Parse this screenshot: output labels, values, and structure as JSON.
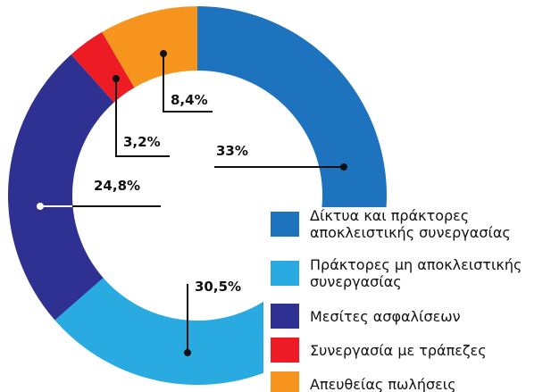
{
  "chart_data": {
    "type": "donut",
    "categories": [
      "Δίκτυα και πράκτορες αποκλειστικής συνεργασίας",
      "Πράκτορες μη αποκλειστικής συνεργασίας",
      "Μεσίτες ασφαλίσεων",
      "Συνεργασία με τράπεζες",
      "Απευθείας πωλήσεις"
    ],
    "values": [
      33,
      30.5,
      24.8,
      3.2,
      8.4
    ],
    "value_labels": [
      "33%",
      "30,5%",
      "24,8%",
      "3,2%",
      "8,4%"
    ],
    "colors": [
      "#1e73be",
      "#29abe2",
      "#2e3192",
      "#ed1c24",
      "#f7941d"
    ],
    "legend": "bottom-right"
  }
}
